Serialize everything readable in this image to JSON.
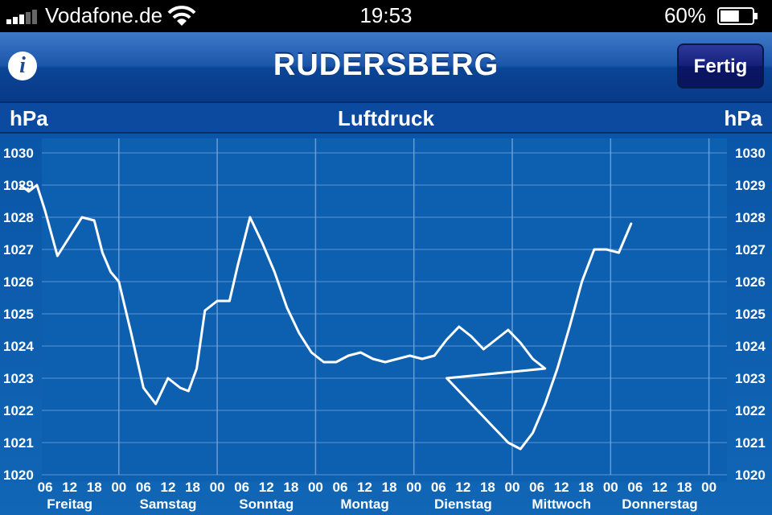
{
  "status_bar": {
    "carrier": "Vodafone.de",
    "time": "19:53",
    "battery_percent": "60%",
    "battery_level": 0.6
  },
  "nav": {
    "title": "RUDERSBERG",
    "done_label": "Fertig",
    "info_icon": "info-icon"
  },
  "chart_header": {
    "unit_left": "hPa",
    "title": "Luftdruck",
    "unit_right": "hPa"
  },
  "colors": {
    "accent": "#0b4a9e",
    "line": "#ffffff",
    "grid": "#6fa3dc"
  },
  "chart_data": {
    "type": "line",
    "title": "Luftdruck",
    "ylabel": "hPa",
    "ylim": [
      1020,
      1030
    ],
    "y_ticks": [
      "1030",
      "1029",
      "1028",
      "1027",
      "1026",
      "1025",
      "1024",
      "1023",
      "1022",
      "1021",
      "1020"
    ],
    "x_unit": "hours since Freitag 00",
    "xlim": [
      0,
      170
    ],
    "day_labels": [
      "Freitag",
      "Samstag",
      "Sonntag",
      "Montag",
      "Dienstag",
      "Mittwoch",
      "Donnerstag"
    ],
    "hour_labels": [
      "06",
      "12",
      "18",
      "00",
      "06",
      "12",
      "18",
      "00",
      "06",
      "12",
      "18",
      "00",
      "06",
      "12",
      "18",
      "00",
      "06",
      "12",
      "18",
      "00",
      "06",
      "12",
      "18",
      "00",
      "06",
      "12",
      "18",
      "00"
    ],
    "hour_positions": [
      6,
      12,
      18,
      24,
      30,
      36,
      42,
      48,
      54,
      60,
      66,
      72,
      78,
      84,
      90,
      96,
      102,
      108,
      114,
      120,
      126,
      132,
      138,
      144,
      150,
      156,
      162,
      168
    ],
    "series": [
      {
        "points": [
          [
            0,
            1029.0
          ],
          [
            2,
            1028.8
          ],
          [
            4,
            1029.0
          ],
          [
            6,
            1028.2
          ],
          [
            9,
            1026.8
          ],
          [
            12,
            1027.4
          ],
          [
            15,
            1028.0
          ],
          [
            18,
            1027.9
          ],
          [
            20,
            1026.9
          ],
          [
            22,
            1026.3
          ],
          [
            24,
            1026.0
          ],
          [
            27,
            1024.4
          ],
          [
            30,
            1022.7
          ],
          [
            33,
            1022.2
          ],
          [
            36,
            1023.0
          ],
          [
            39,
            1022.7
          ],
          [
            41,
            1022.6
          ],
          [
            43,
            1023.3
          ],
          [
            45,
            1025.1
          ],
          [
            48,
            1025.4
          ],
          [
            51,
            1025.4
          ],
          [
            53,
            1026.5
          ],
          [
            56,
            1028.0
          ],
          [
            59,
            1027.2
          ],
          [
            62,
            1026.3
          ],
          [
            65,
            1025.2
          ],
          [
            68,
            1024.4
          ],
          [
            71,
            1023.8
          ],
          [
            74,
            1023.5
          ],
          [
            77,
            1023.5
          ],
          [
            80,
            1023.7
          ],
          [
            83,
            1023.8
          ],
          [
            86,
            1023.6
          ],
          [
            89,
            1023.5
          ],
          [
            92,
            1023.6
          ],
          [
            95,
            1023.7
          ],
          [
            98,
            1023.6
          ],
          [
            101,
            1023.7
          ],
          [
            104,
            1024.2
          ],
          [
            107,
            1024.6
          ],
          [
            110,
            1024.3
          ],
          [
            113,
            1023.9
          ],
          [
            116,
            1024.2
          ],
          [
            119,
            1024.5
          ],
          [
            122,
            1024.1
          ],
          [
            125,
            1023.6
          ],
          [
            128,
            1023.3
          ],
          [
            104,
            1023.0
          ],
          [
            107,
            1022.6
          ],
          [
            110,
            1022.2
          ],
          [
            113,
            1021.8
          ],
          [
            116,
            1021.4
          ],
          [
            119,
            1021.0
          ],
          [
            122,
            1020.8
          ],
          [
            125,
            1021.3
          ],
          [
            128,
            1022.2
          ],
          [
            131,
            1023.3
          ],
          [
            134,
            1024.6
          ],
          [
            137,
            1026.0
          ],
          [
            140,
            1027.0
          ],
          [
            143,
            1027.0
          ],
          [
            146,
            1026.9
          ],
          [
            149,
            1027.8
          ]
        ]
      }
    ],
    "grid": true
  }
}
